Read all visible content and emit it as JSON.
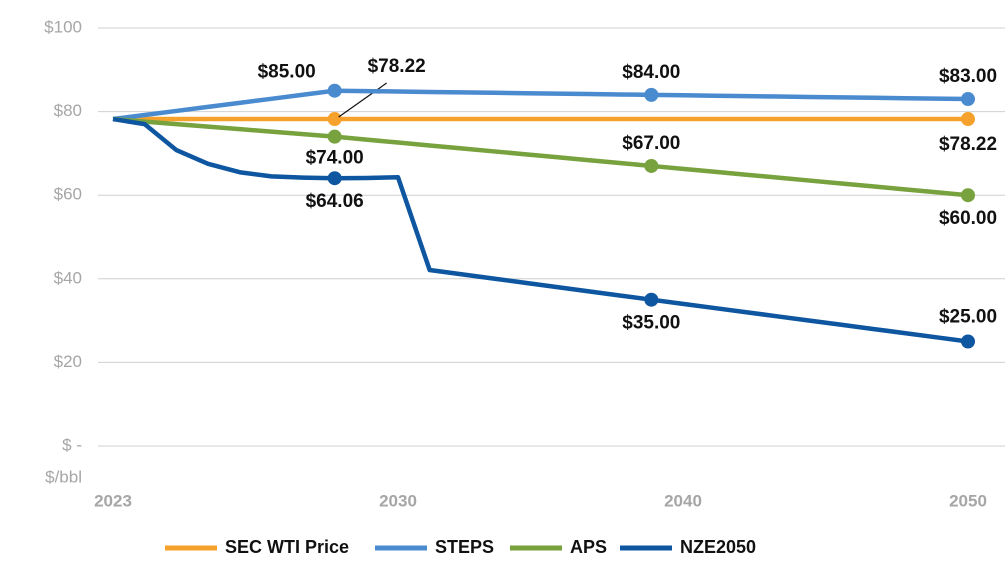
{
  "chart_data": {
    "type": "line",
    "y_axis_label": "$/bbl",
    "categories": [
      "2023",
      null,
      null,
      null,
      null,
      null,
      null,
      null,
      null,
      "2030",
      null,
      null,
      null,
      null,
      null,
      null,
      null,
      null,
      "2040",
      null,
      null,
      null,
      null,
      null,
      null,
      null,
      null,
      "2050"
    ],
    "ylim": [
      0,
      100
    ],
    "yticks": [
      {
        "value": 0,
        "label": "$ -"
      },
      {
        "value": 20,
        "label": "$20"
      },
      {
        "value": 40,
        "label": "$40"
      },
      {
        "value": 60,
        "label": "$60"
      },
      {
        "value": 80,
        "label": "$80"
      },
      {
        "value": 100,
        "label": "$100"
      }
    ],
    "grid": true,
    "legend": "bottom",
    "series": [
      {
        "name": "SEC WTI Price",
        "color": "#f5a12b",
        "values": [
          78.22,
          78.22,
          78.22,
          78.22,
          78.22,
          78.22,
          78.22,
          78.22,
          78.22,
          78.22,
          78.22,
          78.22,
          78.22,
          78.22,
          78.22,
          78.22,
          78.22,
          78.22,
          78.22,
          78.22,
          78.22,
          78.22,
          78.22,
          78.22,
          78.22,
          78.22,
          78.22,
          78.22
        ],
        "value_labels": [
          null,
          null,
          null,
          null,
          null,
          null,
          null,
          "$78.22",
          null,
          null,
          null,
          null,
          null,
          null,
          null,
          null,
          null,
          null,
          null,
          null,
          null,
          null,
          null,
          null,
          null,
          null,
          null,
          "$78.22"
        ]
      },
      {
        "name": "STEPS",
        "color": "#4a8bcf",
        "values": [
          78.22,
          79.19,
          80.16,
          81.13,
          82.09,
          83.06,
          84.03,
          85,
          84.9,
          84.8,
          84.7,
          84.6,
          84.5,
          84.4,
          84.3,
          84.2,
          84.1,
          84,
          83.9,
          83.8,
          83.7,
          83.6,
          83.5,
          83.4,
          83.3,
          83.2,
          83.1,
          83
        ],
        "value_labels": [
          null,
          null,
          null,
          null,
          null,
          null,
          null,
          "$85.00",
          null,
          null,
          null,
          null,
          null,
          null,
          null,
          null,
          null,
          "$84.00",
          null,
          null,
          null,
          null,
          null,
          null,
          null,
          null,
          null,
          "$83.00"
        ]
      },
      {
        "name": "APS",
        "color": "#77a23e",
        "values": [
          78.22,
          77.6,
          77,
          76.4,
          75.8,
          75.2,
          74.6,
          74,
          73.3,
          72.6,
          71.9,
          71.2,
          70.5,
          69.8,
          69.1,
          68.4,
          67.7,
          67,
          66.3,
          65.6,
          64.9,
          64.2,
          63.5,
          62.8,
          62.1,
          61.4,
          60.7,
          60
        ],
        "value_labels": [
          null,
          null,
          null,
          null,
          null,
          null,
          null,
          "$74.00",
          null,
          null,
          null,
          null,
          null,
          null,
          null,
          null,
          null,
          "$67.00",
          null,
          null,
          null,
          null,
          null,
          null,
          null,
          null,
          null,
          "$60.00"
        ]
      },
      {
        "name": "NZE2050",
        "color": "#0e56a0",
        "values": [
          78.22,
          77,
          70.8,
          67.5,
          65.5,
          64.5,
          64.2,
          64.06,
          64.1,
          64.3,
          42.1,
          41.09,
          40.07,
          39.06,
          38.04,
          37.03,
          36.01,
          35,
          34,
          33,
          32,
          31,
          30,
          29,
          28,
          27,
          26,
          25
        ],
        "value_labels": [
          null,
          null,
          null,
          null,
          null,
          null,
          null,
          "$64.06",
          null,
          null,
          null,
          null,
          null,
          null,
          null,
          null,
          null,
          "$35.00",
          null,
          null,
          null,
          null,
          null,
          null,
          null,
          null,
          null,
          "$25.00"
        ]
      }
    ]
  }
}
